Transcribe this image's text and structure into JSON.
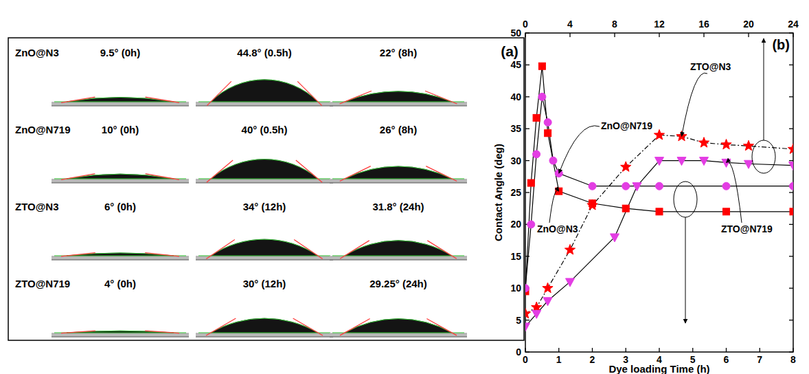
{
  "panel_a": {
    "label": "(a)",
    "rows": [
      {
        "name": "ZnO@N3",
        "drops": [
          {
            "angle": 9.5,
            "label": "9.5° (0h)"
          },
          {
            "angle": 44.8,
            "label": "44.8° (0.5h)"
          },
          {
            "angle": 22,
            "label": "22° (8h)"
          }
        ]
      },
      {
        "name": "ZnO@N719",
        "drops": [
          {
            "angle": 10,
            "label": "10° (0h)"
          },
          {
            "angle": 40,
            "label": "40° (0.5h)"
          },
          {
            "angle": 26,
            "label": "26° (8h)"
          }
        ]
      },
      {
        "name": "ZTO@N3",
        "drops": [
          {
            "angle": 6,
            "label": "6° (0h)"
          },
          {
            "angle": 34,
            "label": "34° (12h)"
          },
          {
            "angle": 31.8,
            "label": "31.8° (24h)"
          }
        ]
      },
      {
        "name": "ZTO@N719",
        "drops": [
          {
            "angle": 4,
            "label": "4° (0h)"
          },
          {
            "angle": 30,
            "label": "30° (12h)"
          },
          {
            "angle": 29.25,
            "label": "29.25° (24h)"
          }
        ]
      }
    ]
  },
  "chart_data": {
    "type": "line",
    "label": "(b)",
    "x_label": "Dye loading Time (h)",
    "y_label": "Contact Angle (deg)",
    "xlim": [
      0,
      8
    ],
    "xticks": [
      0,
      1,
      2,
      3,
      4,
      5,
      6,
      7,
      8
    ],
    "x2lim": [
      0,
      24
    ],
    "x2ticks": [
      0,
      4,
      8,
      12,
      16,
      20,
      24
    ],
    "ylim": [
      0,
      50
    ],
    "yticks": [
      0,
      5,
      10,
      15,
      20,
      25,
      30,
      35,
      40,
      45,
      50
    ],
    "series": [
      {
        "name": "ZnO@N3",
        "color": "#ff0000",
        "marker": "square",
        "line_style": "solid",
        "x": [
          0,
          0.17,
          0.33,
          0.5,
          0.67,
          1,
          2,
          3,
          4,
          6,
          8
        ],
        "values": [
          9.5,
          26.5,
          36.7,
          44.8,
          34.3,
          25.2,
          23.3,
          22.5,
          22,
          22,
          22
        ]
      },
      {
        "name": "ZnO@N719",
        "color": "#e33de3",
        "marker": "circle",
        "line_style": "solid",
        "x": [
          0,
          0.17,
          0.33,
          0.5,
          0.67,
          0.83,
          1,
          2,
          3,
          4,
          6,
          8
        ],
        "values": [
          10,
          20,
          31,
          40,
          36,
          30,
          28,
          26,
          26,
          26,
          26,
          26
        ]
      },
      {
        "name": "ZTO@N3",
        "color": "#ff0000",
        "marker": "star",
        "line_style": "dashed",
        "axis": "x2",
        "x": [
          0,
          1,
          2,
          4,
          6,
          9,
          12,
          14,
          16,
          18,
          20,
          24
        ],
        "values": [
          6,
          7,
          10,
          16,
          23,
          29,
          34,
          33.8,
          32.8,
          32.5,
          32.3,
          31.8
        ]
      },
      {
        "name": "ZTO@N719",
        "color": "#e33de3",
        "marker": "triangle-down",
        "line_style": "solid",
        "axis": "x2",
        "x": [
          0,
          1,
          2,
          4,
          8,
          10,
          12,
          14,
          16,
          18,
          20,
          24
        ],
        "values": [
          4,
          6,
          8,
          11,
          18,
          26,
          30,
          30,
          30,
          29.7,
          29.5,
          29.25
        ]
      }
    ]
  }
}
